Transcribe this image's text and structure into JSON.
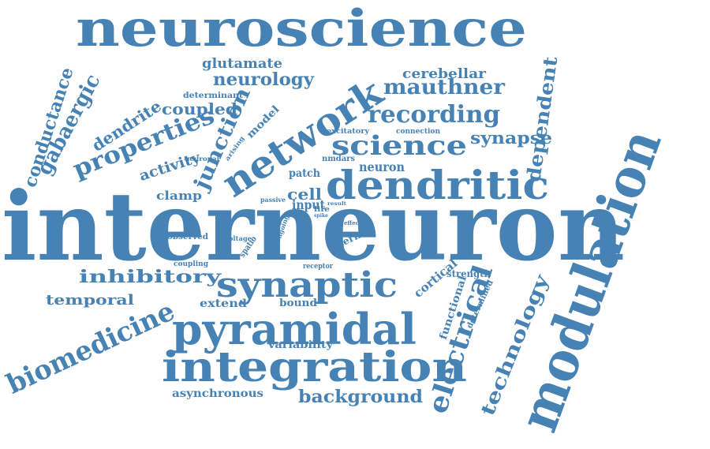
{
  "word_color": "#4682b4",
  "background": "#ffffff",
  "words": [
    "neuroscience",
    "interneuron",
    "modulation",
    "dendritic",
    "network",
    "science",
    "pyramidal",
    "integration",
    "synaptic",
    "biomedicine",
    "electrical",
    "technology",
    "properties",
    "gabaergic",
    "conductance",
    "dendrite",
    "recording",
    "mauthner",
    "neurology",
    "glutamate",
    "cerebellar",
    "dependent",
    "synapse",
    "junction",
    "coupled",
    "determinant",
    "activity",
    "clamp",
    "neuronal",
    "arising",
    "model",
    "excitatory",
    "connection",
    "nmdars",
    "patch",
    "neuron",
    "cell",
    "passive",
    "input",
    "life",
    "result",
    "spike",
    "effect",
    "observed",
    "voltage",
    "spatio",
    "ongoing",
    "term",
    "inhibitory",
    "temporal",
    "extend",
    "coupling",
    "receptor",
    "bound",
    "cortical",
    "strength",
    "functional",
    "determined",
    "variability",
    "asynchronous",
    "background"
  ]
}
